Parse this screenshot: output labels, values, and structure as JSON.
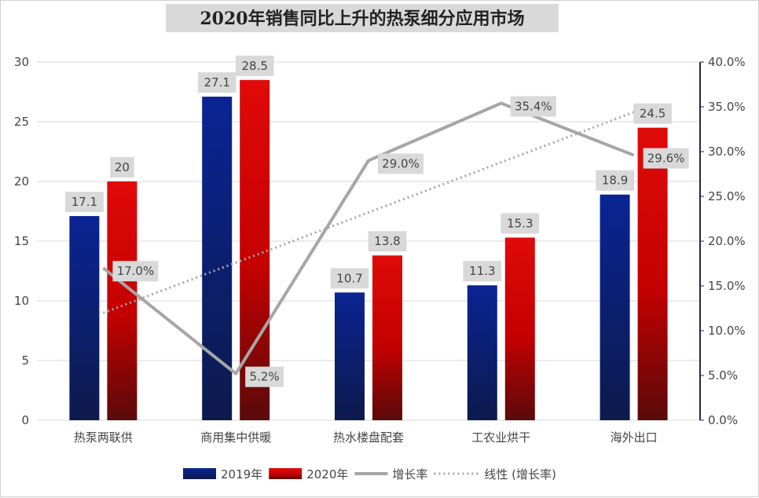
{
  "chart_data": {
    "type": "bar",
    "title": "2020年销售同比上升的热泵细分应用市场",
    "categories": [
      "热泵两联供",
      "商用集中供暖",
      "热水楼盘配套",
      "工农业烘干",
      "海外出口"
    ],
    "series": [
      {
        "name": "2019年",
        "type": "bar",
        "axis": "left",
        "values": [
          17.1,
          27.1,
          10.7,
          11.3,
          18.9
        ],
        "labels": [
          "17.1",
          "27.1",
          "10.7",
          "11.3",
          "18.9"
        ],
        "color": "#0b1f80"
      },
      {
        "name": "2020年",
        "type": "bar",
        "axis": "left",
        "values": [
          20,
          28.5,
          13.8,
          15.3,
          24.5
        ],
        "labels": [
          "20",
          "28.5",
          "13.8",
          "15.3",
          "24.5"
        ],
        "color": "#d70000"
      },
      {
        "name": "增长率",
        "type": "line",
        "axis": "right",
        "values": [
          17.0,
          5.2,
          29.0,
          35.4,
          29.6
        ],
        "labels": [
          "17.0%",
          "5.2%",
          "29.0%",
          "35.4%",
          "29.6%"
        ],
        "color": "#a6a6a6"
      },
      {
        "name": "线性 (增长率)",
        "type": "trendline",
        "axis": "right",
        "values": [
          11.99,
          17.6,
          23.2,
          28.8,
          34.4
        ],
        "color": "#a6a6a6"
      }
    ],
    "y_left": {
      "min": 0,
      "max": 30,
      "ticks": [
        "0",
        "5",
        "10",
        "15",
        "20",
        "25",
        "30"
      ]
    },
    "y_right": {
      "min": 0,
      "max": 40,
      "ticks": [
        "0.0%",
        "5.0%",
        "10.0%",
        "15.0%",
        "20.0%",
        "25.0%",
        "30.0%",
        "35.0%",
        "40.0%"
      ]
    },
    "xlabel": "",
    "ylabel": "",
    "grid": true,
    "legend": "bottom"
  }
}
